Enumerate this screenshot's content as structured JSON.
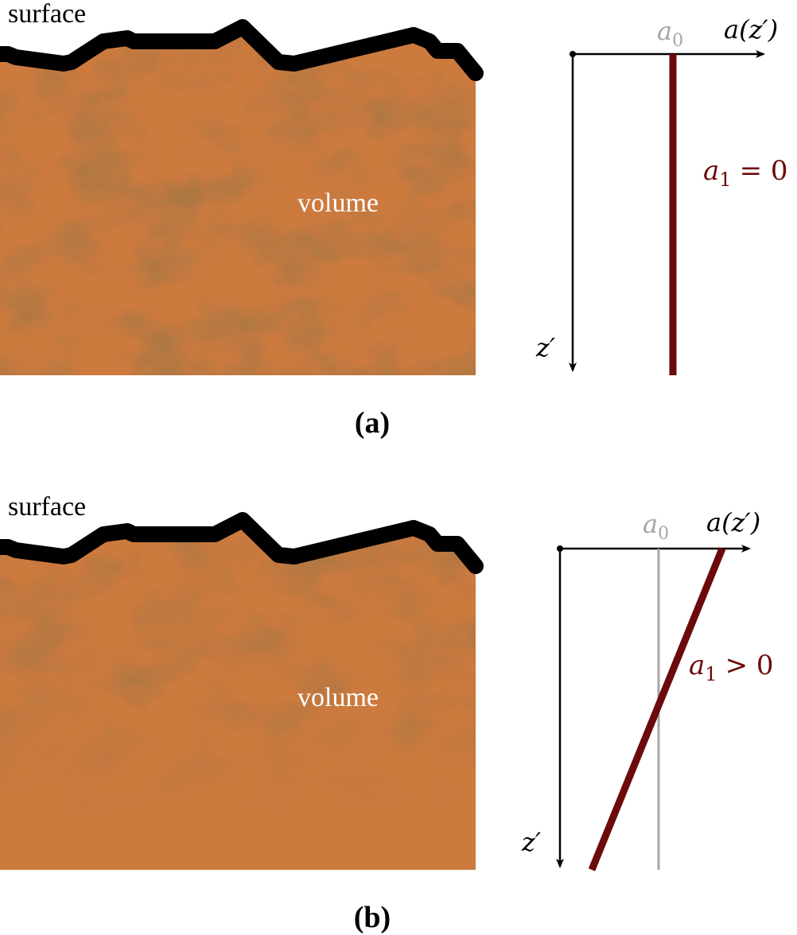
{
  "colors": {
    "material": "#cd7a3e",
    "material_shade": "#8f5226",
    "surface_line": "#000000",
    "profile": "#6b0a0a",
    "a0_gray": "#a6a6a6",
    "volume_text": "#ffffff"
  },
  "panels": [
    {
      "id": "a",
      "caption": "(a)",
      "surface_label": "surface",
      "volume_label": "volume",
      "a0_label": "a",
      "a0_sub": "0",
      "axis_x_label": "a(z′)",
      "axis_z_label": "z′",
      "condition_base": "a",
      "condition_sub": "1",
      "condition_rel": "= 0",
      "profile_slope": "zero"
    },
    {
      "id": "b",
      "caption": "(b)",
      "surface_label": "surface",
      "volume_label": "volume",
      "a0_label": "a",
      "a0_sub": "0",
      "axis_x_label": "a(z′)",
      "axis_z_label": "z′",
      "condition_base": "a",
      "condition_sub": "1",
      "condition_rel": "> 0",
      "profile_slope": "positive"
    }
  ]
}
